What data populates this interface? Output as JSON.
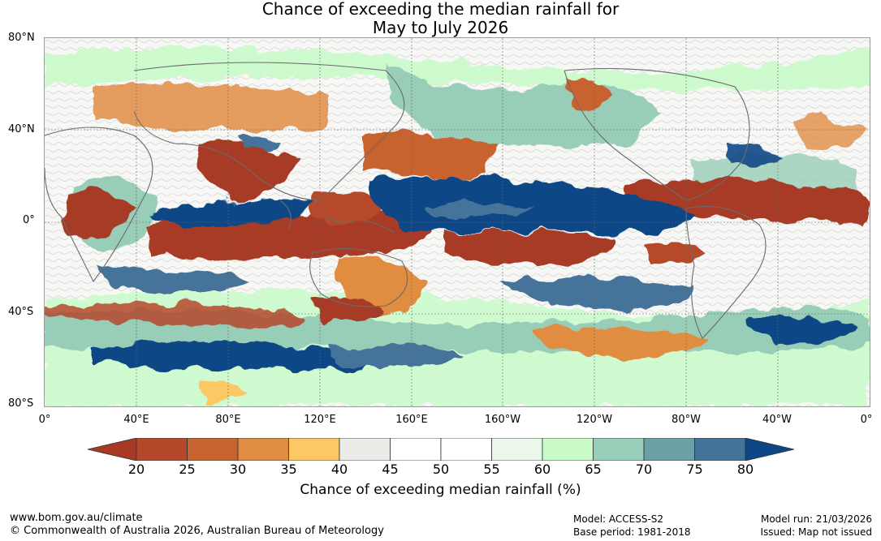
{
  "title": {
    "line1": "Chance of exceeding the median rainfall for",
    "line2": "May to July 2026"
  },
  "map": {
    "lat_labels": [
      "80°N",
      "40°N",
      "0°",
      "40°S",
      "80°S"
    ],
    "lon_labels": [
      "0°",
      "40°E",
      "80°E",
      "120°E",
      "160°E",
      "160°W",
      "120°W",
      "80°W",
      "40°W",
      "0°"
    ]
  },
  "colorbar": {
    "ticks": [
      "20",
      "25",
      "30",
      "35",
      "40",
      "45",
      "50",
      "55",
      "60",
      "65",
      "70",
      "75",
      "80"
    ],
    "colors": [
      "#a83a25",
      "#b5482b",
      "#c8622f",
      "#e08d43",
      "#fbc863",
      "#ebebe7",
      "#ffffff",
      "#ffffff",
      "#eaf7ea",
      "#c9fbc9",
      "#98cdb8",
      "#6c9fa6",
      "#44739a",
      "#0e4786"
    ],
    "label": "Chance of exceeding median rainfall (%)"
  },
  "footer": {
    "website": "www.bom.gov.au/climate",
    "copyright": "© Commonwealth of Australia 2026, Australian Bureau of Meteorology",
    "model": "Model: ACCESS-S2",
    "base_period": "Base period: 1981-2018",
    "model_run": "Model run: 21/03/2026",
    "issued": "Issued: Map not issued"
  }
}
